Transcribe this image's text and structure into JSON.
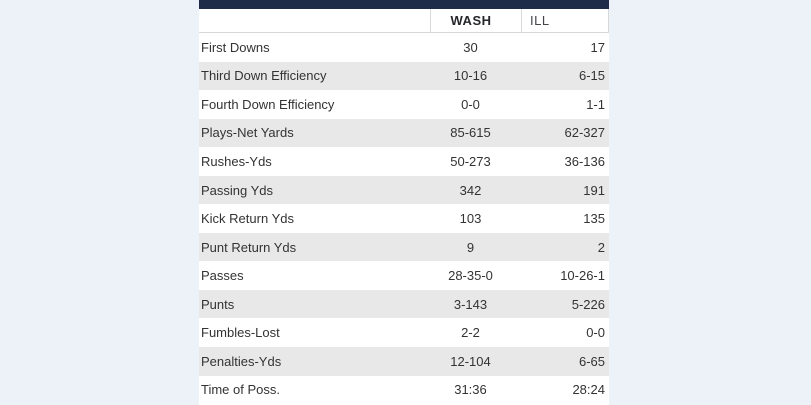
{
  "page": {
    "background_color": "#edf2f9"
  },
  "table": {
    "accent_bar_color": "#1e2b49",
    "stripe_color": "#e8e8e8",
    "header": {
      "team1": "WASH",
      "team2": "ILL"
    },
    "rows": [
      {
        "stat": "First Downs",
        "wash": "30",
        "ill": "17"
      },
      {
        "stat": "Third Down Efficiency",
        "wash": "10-16",
        "ill": "6-15"
      },
      {
        "stat": "Fourth Down Efficiency",
        "wash": "0-0",
        "ill": "1-1"
      },
      {
        "stat": "Plays-Net Yards",
        "wash": "85-615",
        "ill": "62-327"
      },
      {
        "stat": "Rushes-Yds",
        "wash": "50-273",
        "ill": "36-136"
      },
      {
        "stat": "Passing Yds",
        "wash": "342",
        "ill": "191"
      },
      {
        "stat": "Kick Return Yds",
        "wash": "103",
        "ill": "135"
      },
      {
        "stat": "Punt Return Yds",
        "wash": "9",
        "ill": "2"
      },
      {
        "stat": "Passes",
        "wash": "28-35-0",
        "ill": "10-26-1"
      },
      {
        "stat": "Punts",
        "wash": "3-143",
        "ill": "5-226"
      },
      {
        "stat": "Fumbles-Lost",
        "wash": "2-2",
        "ill": "0-0"
      },
      {
        "stat": "Penalties-Yds",
        "wash": "12-104",
        "ill": "6-65"
      },
      {
        "stat": "Time of Poss.",
        "wash": "31:36",
        "ill": "28:24"
      }
    ]
  }
}
